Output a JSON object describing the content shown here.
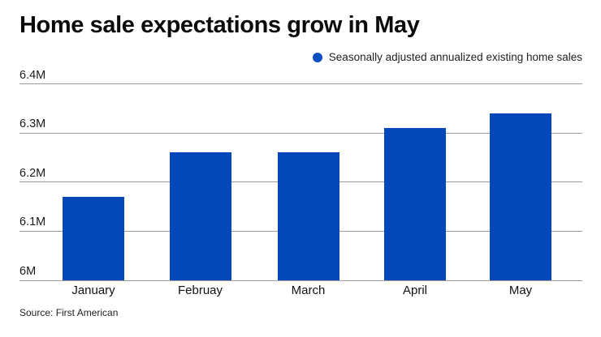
{
  "title": "Home sale expectations grow in May",
  "legend": {
    "label": "Seasonally adjusted annualized existing home sales",
    "marker": "circle-icon"
  },
  "source": "Source: First American",
  "colors": {
    "bar": "#0548ba",
    "legend_dot": "#0b4fc4",
    "grid": "#9b9b9b",
    "title_text": "#0b0b0b",
    "axis_text": "#1a1a1a"
  },
  "chart_data": {
    "type": "bar",
    "categories": [
      "January",
      "Februay",
      "March",
      "April",
      "May"
    ],
    "values": [
      6.17,
      6.26,
      6.26,
      6.31,
      6.34
    ],
    "series": [
      {
        "name": "Seasonally adjusted annualized existing home sales",
        "values": [
          6.17,
          6.26,
          6.26,
          6.31,
          6.34
        ]
      }
    ],
    "title": "Home sale expectations grow in May",
    "xlabel": "",
    "ylabel": "",
    "ylim": [
      6.0,
      6.4
    ],
    "ytick_labels": [
      "6M",
      "6.1M",
      "6.2M",
      "6.3M",
      "6.4M"
    ],
    "ytick_values": [
      6.0,
      6.1,
      6.2,
      6.3,
      6.4
    ],
    "unit": "M",
    "grid": "horizontal",
    "legend_position": "top-right",
    "source": "Source: First American"
  }
}
